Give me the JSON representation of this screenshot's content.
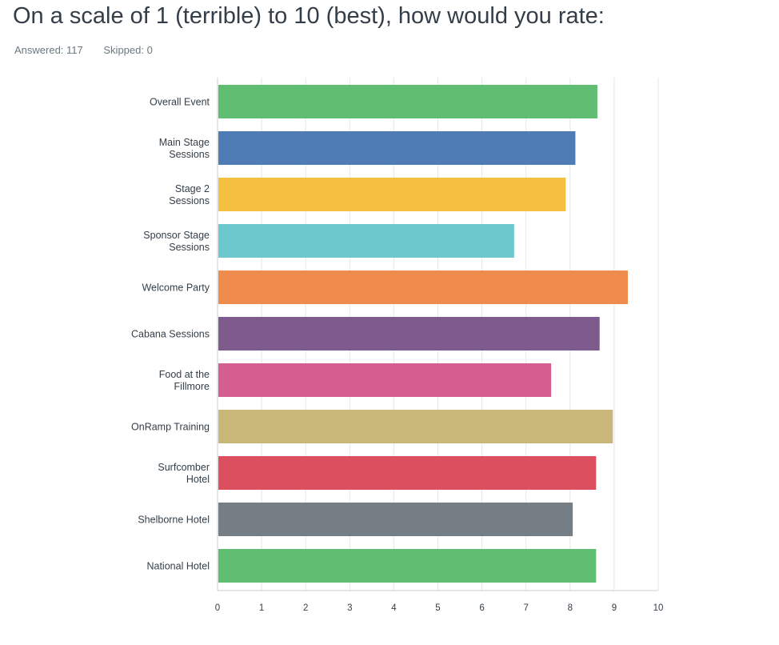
{
  "header": {
    "title": "On a scale of 1 (terrible) to 10 (best), how would you rate:",
    "answered": "Answered: 117",
    "skipped": "Skipped: 0"
  },
  "chart_data": {
    "type": "bar",
    "orientation": "horizontal",
    "categories": [
      [
        "Overall Event"
      ],
      [
        "Main Stage",
        "Sessions"
      ],
      [
        "Stage 2",
        "Sessions"
      ],
      [
        "Sponsor Stage",
        "Sessions"
      ],
      [
        "Welcome Party"
      ],
      [
        "Cabana Sessions"
      ],
      [
        "Food at the",
        "Fillmore"
      ],
      [
        "OnRamp Training"
      ],
      [
        "Surfcomber",
        "Hotel"
      ],
      [
        "Shelborne Hotel"
      ],
      [
        "National Hotel"
      ]
    ],
    "values": [
      8.62,
      8.12,
      7.9,
      6.73,
      9.31,
      8.67,
      7.57,
      8.97,
      8.59,
      8.06,
      8.59
    ],
    "colors": [
      "#5fbe72",
      "#507cb6",
      "#f5bf41",
      "#6bc8cd",
      "#ef8c4d",
      "#7d5c8d",
      "#d45e90",
      "#c9b77a",
      "#dc4f5f",
      "#767e85",
      "#5fbe72"
    ],
    "xticks": [
      "0",
      "1",
      "2",
      "3",
      "4",
      "5",
      "6",
      "7",
      "8",
      "9",
      "10"
    ],
    "xlim": [
      0,
      10
    ],
    "grid": true,
    "title": "",
    "xlabel": "",
    "ylabel": ""
  }
}
